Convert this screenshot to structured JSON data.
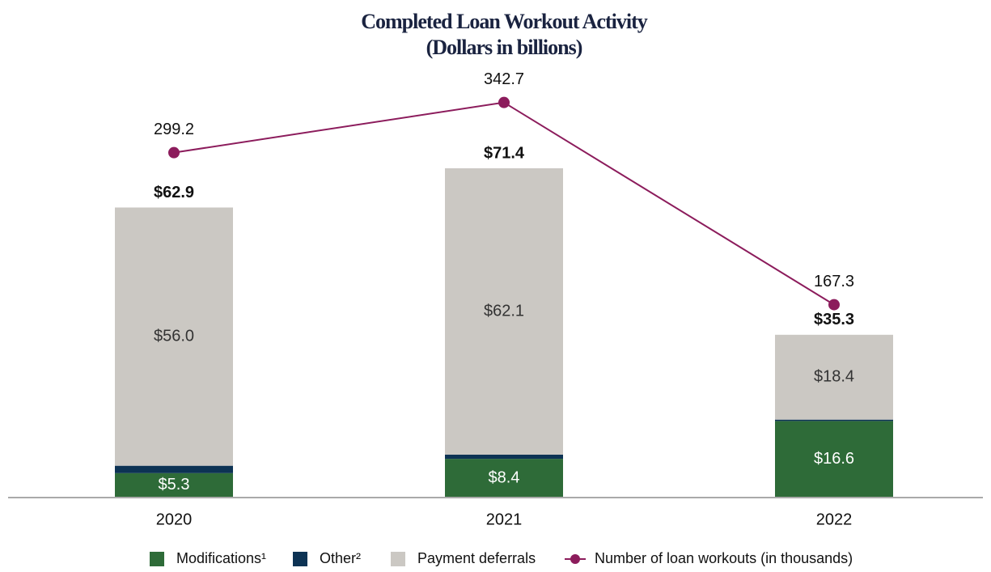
{
  "chart_data": {
    "type": "bar",
    "title": "Completed Loan Workout Activity",
    "subtitle": "(Dollars in billions)",
    "categories": [
      "2020",
      "2021",
      "2022"
    ],
    "stacked": true,
    "series": [
      {
        "name": "Modifications¹",
        "color": "#2e6b38",
        "values": [
          5.3,
          8.4,
          16.6
        ],
        "value_labels": [
          "$5.3",
          "$8.4",
          "$16.6"
        ]
      },
      {
        "name": "Other²",
        "color": "#0d3354",
        "values": [
          1.6,
          0.9,
          0.3
        ]
      },
      {
        "name": "Payment deferrals",
        "color": "#cbc8c3",
        "values": [
          56.0,
          62.1,
          18.4
        ],
        "value_labels": [
          "$56.0",
          "$62.1",
          "$18.4"
        ]
      },
      {
        "name": "Number of loan workouts (in thousands)",
        "type": "line",
        "axis": "y2",
        "color": "#8c1c5c",
        "values": [
          299.2,
          342.7,
          167.3
        ]
      }
    ],
    "totals": [
      62.9,
      71.4,
      35.3
    ],
    "total_labels": [
      "$62.9",
      "$71.4",
      "$35.3"
    ],
    "ylim": [
      0,
      100
    ],
    "y2lim": [
      0,
      400
    ],
    "legend": "bottom"
  }
}
